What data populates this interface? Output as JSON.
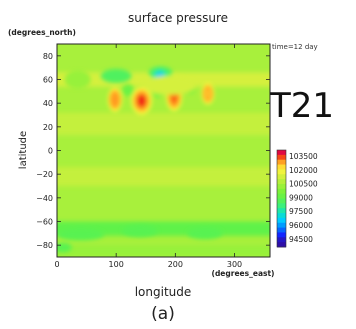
{
  "chart_data": {
    "type": "heatmap",
    "title": "surface pressure",
    "ylabel_unit": "(degrees_north)",
    "xlabel": "longitude",
    "xlabel_unit": "(degrees_east)",
    "ylabel": "latitude",
    "time_label": "time=12 day",
    "model_label": "T21",
    "panel_label": "(a)",
    "xlim": [
      0,
      360
    ],
    "ylim": [
      -90,
      90
    ],
    "x_ticks": [
      "0",
      "100",
      "200",
      "300"
    ],
    "x_tick_values": [
      0,
      100,
      200,
      300
    ],
    "y_ticks": [
      "80",
      "60",
      "40",
      "20",
      "0",
      "−20",
      "−40",
      "−60",
      "−80"
    ],
    "y_tick_values": [
      80,
      60,
      40,
      20,
      0,
      -20,
      -40,
      -60,
      -80
    ],
    "background_value": 100500,
    "bands": [
      {
        "lat_min": 54,
        "lat_max": 66,
        "value": 101300
      },
      {
        "lat_min": 13,
        "lat_max": 32,
        "value": 101000
      },
      {
        "lat_min": -30,
        "lat_max": -14,
        "value": 101000
      },
      {
        "lat_min": -72,
        "lat_max": -60,
        "value": 99000
      },
      {
        "lat_min": -90,
        "lat_max": -80,
        "value": 100200
      }
    ],
    "features": [
      {
        "lon": 100,
        "lat": 63,
        "rx": 26,
        "ry": 6,
        "value": 98700
      },
      {
        "lon": 175,
        "lat": 66,
        "rx": 20,
        "ry": 5,
        "value": 98700
      },
      {
        "lon": 174,
        "lat": 62,
        "rx": 9,
        "ry": 5,
        "value": 96600
      },
      {
        "lon": 98,
        "lat": 43,
        "rx": 9,
        "ry": 8,
        "value": 102800
      },
      {
        "lon": 143,
        "lat": 42,
        "rx": 13,
        "ry": 9,
        "value": 103400
      },
      {
        "lon": 198,
        "lat": 45,
        "rx": 10,
        "ry": 9,
        "value": 103100
      },
      {
        "lon": 255,
        "lat": 48,
        "rx": 8,
        "ry": 7,
        "value": 102500
      },
      {
        "lon": 120,
        "lat": 51,
        "rx": 10,
        "ry": 5,
        "value": 99300
      },
      {
        "lon": 170,
        "lat": 50,
        "rx": 9,
        "ry": 5,
        "value": 99300
      },
      {
        "lon": 225,
        "lat": 53,
        "rx": 9,
        "ry": 5,
        "value": 99500
      },
      {
        "lon": 35,
        "lat": 60,
        "rx": 22,
        "ry": 8,
        "value": 100200
      },
      {
        "lon": 190,
        "lat": 55,
        "rx": 45,
        "ry": 8,
        "value": 101300
      },
      {
        "lon": 40,
        "lat": -71,
        "rx": 40,
        "ry": 5,
        "value": 98900
      },
      {
        "lon": 140,
        "lat": -68,
        "rx": 30,
        "ry": 5,
        "value": 98900
      },
      {
        "lon": 250,
        "lat": -70,
        "rx": 30,
        "ry": 5,
        "value": 98900
      },
      {
        "lon": 10,
        "lat": -82,
        "rx": 15,
        "ry": 4,
        "value": 98900
      }
    ],
    "colorbar": {
      "labels": [
        "103500",
        "102000",
        "100500",
        "99000",
        "97500",
        "96000",
        "94500"
      ],
      "values": [
        103500,
        102000,
        100500,
        99000,
        97500,
        96000,
        94500
      ],
      "stops": [
        {
          "value": 94500,
          "color": "#2e0fa8"
        },
        {
          "value": 95250,
          "color": "#1326ff"
        },
        {
          "value": 96000,
          "color": "#0084ff"
        },
        {
          "value": 96750,
          "color": "#00ccff"
        },
        {
          "value": 97500,
          "color": "#0fe3c1"
        },
        {
          "value": 98250,
          "color": "#3cf07d"
        },
        {
          "value": 99000,
          "color": "#5ef24a"
        },
        {
          "value": 99750,
          "color": "#7ef23a"
        },
        {
          "value": 100500,
          "color": "#a8f03c"
        },
        {
          "value": 101250,
          "color": "#d2f03c"
        },
        {
          "value": 102000,
          "color": "#fff53d"
        },
        {
          "value": 102500,
          "color": "#ffc329"
        },
        {
          "value": 103000,
          "color": "#ff7d1a"
        },
        {
          "value": 103500,
          "color": "#ee1010"
        },
        {
          "value": 104000,
          "color": "#d10074"
        }
      ]
    }
  }
}
